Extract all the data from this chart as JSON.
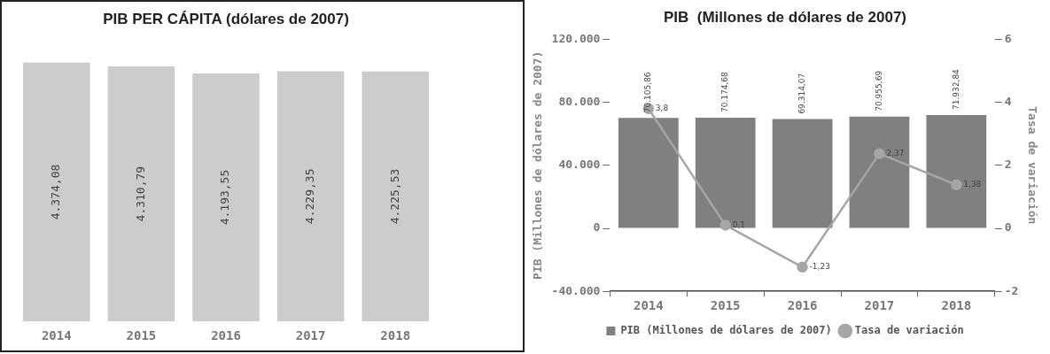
{
  "chart_data": [
    {
      "type": "bar",
      "title": "PIB PER CÁPITA (dólares de 2007)",
      "categories": [
        "2014",
        "2015",
        "2016",
        "2017",
        "2018"
      ],
      "values": [
        4374.08,
        4310.79,
        4193.55,
        4229.35,
        4225.53
      ],
      "color": "#cccccc",
      "value_labels": [
        "4.374,08",
        "4.310,79",
        "4.193,55",
        "4.229,35",
        "4.225,53"
      ],
      "tick_labels": "x",
      "legend": false,
      "grid": false
    },
    {
      "type": "bar",
      "title": "PIB  (Millones de dólares de 2007)",
      "ylabel": "PIB (Millones de dólares de 2007)",
      "y2label": "Tasa de variación",
      "categories": [
        "2014",
        "2015",
        "2016",
        "2017",
        "2018"
      ],
      "series": [
        {
          "name": "PIB (Millones de dólares de 2007)",
          "color": "#808080",
          "values": [
            70105.86,
            70174.68,
            69314.07,
            70955.69,
            71932.84
          ],
          "value_labels": [
            "70.105,86",
            "70.174,68",
            "69.314,07",
            "70.955,69",
            "71.932,84"
          ]
        },
        {
          "name": "Tasa de variación",
          "type": "line",
          "axis": "y2",
          "color": "#a6a6a6",
          "values": [
            3.8,
            0.1,
            -1.23,
            2.37,
            1.38
          ],
          "value_labels": [
            "3,8",
            "0,1",
            "-1,23",
            "2,37",
            "1,38"
          ]
        }
      ],
      "ylim": [
        -40000,
        120000
      ],
      "yticks": [
        {
          "value": -40000,
          "label": "-40.000"
        },
        0,
        {
          "value": 40000,
          "label": "40.000"
        },
        {
          "value": 80000,
          "label": "80.000"
        },
        {
          "value": 120000,
          "label": "120.000"
        }
      ],
      "y2lim": [
        -2,
        6
      ],
      "y2ticks": [
        -2,
        0,
        2,
        4,
        6
      ],
      "legend": "bottom",
      "marker": "circle",
      "grid": false
    }
  ]
}
